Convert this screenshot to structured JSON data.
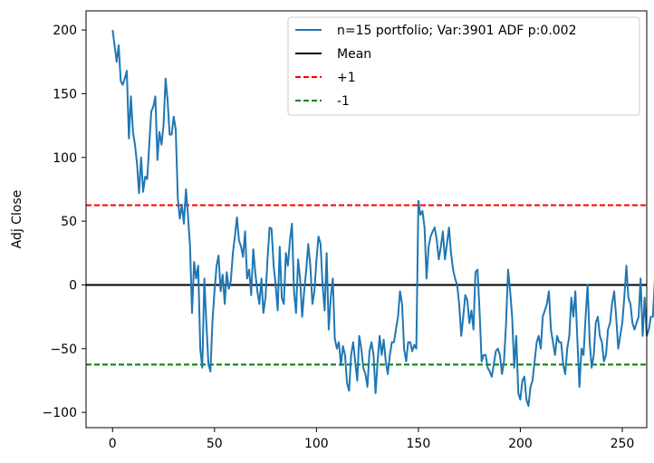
{
  "chart_data": {
    "type": "line",
    "title": "",
    "xlabel": "",
    "ylabel": "Adj Close",
    "xlim": [
      -13,
      262
    ],
    "ylim": [
      -112,
      215
    ],
    "xticks": [
      0,
      50,
      100,
      150,
      200,
      250
    ],
    "yticks": [
      -100,
      -50,
      0,
      50,
      100,
      150,
      200
    ],
    "grid": false,
    "legend_position": "top-right",
    "series": [
      {
        "name": "n=15 portfolio; Var:3901 ADF p:0.002",
        "color": "#1f77b4",
        "style": "solid",
        "x_start": 0,
        "x_step": 1,
        "values": [
          200,
          188,
          175,
          188,
          160,
          157,
          162,
          168,
          115,
          148,
          120,
          110,
          95,
          72,
          100,
          73,
          85,
          83,
          110,
          136,
          140,
          148,
          98,
          120,
          110,
          125,
          162,
          145,
          118,
          118,
          132,
          122,
          68,
          52,
          63,
          48,
          75,
          55,
          30,
          -22,
          18,
          5,
          15,
          -50,
          -65,
          5,
          -30,
          -62,
          -68,
          -28,
          -5,
          15,
          23,
          -5,
          8,
          -15,
          10,
          -3,
          3,
          25,
          38,
          53,
          35,
          30,
          22,
          42,
          5,
          12,
          -8,
          28,
          10,
          -5,
          -15,
          5,
          -22,
          -10,
          20,
          45,
          44,
          15,
          0,
          -20,
          30,
          -10,
          -15,
          25,
          15,
          35,
          48,
          -5,
          -22,
          20,
          5,
          -25,
          -5,
          12,
          32,
          15,
          -15,
          -5,
          20,
          38,
          32,
          0,
          -20,
          25,
          -35,
          -10,
          5,
          -42,
          -50,
          -45,
          -63,
          -48,
          -55,
          -77,
          -83,
          -55,
          -45,
          -60,
          -75,
          -40,
          -50,
          -65,
          -70,
          -80,
          -52,
          -45,
          -55,
          -85,
          -60,
          -40,
          -55,
          -43,
          -60,
          -70,
          -55,
          -45,
          -45,
          -35,
          -25,
          -5,
          -15,
          -50,
          -60,
          -45,
          -45,
          -52,
          -47,
          -50,
          66,
          55,
          58,
          45,
          5,
          30,
          38,
          42,
          45,
          35,
          20,
          30,
          42,
          20,
          32,
          45,
          25,
          12,
          5,
          0,
          -15,
          -40,
          -25,
          -8,
          -12,
          -30,
          -20,
          -35,
          10,
          12,
          -20,
          -60,
          -55,
          -55,
          -65,
          -68,
          -72,
          -62,
          -52,
          -50,
          -55,
          -70,
          -60,
          -30,
          12,
          -5,
          -25,
          -65,
          -40,
          -85,
          -90,
          -75,
          -72,
          -90,
          -95,
          -80,
          -75,
          -60,
          -45,
          -40,
          -50,
          -25,
          -20,
          -15,
          -5,
          -35,
          -45,
          -55,
          -40,
          -45,
          -45,
          -62,
          -70,
          -50,
          -40,
          -10,
          -25,
          -5,
          -45,
          -80,
          -50,
          -55,
          -25,
          0,
          -45,
          -65,
          -55,
          -30,
          -25,
          -40,
          -45,
          -60,
          -55,
          -35,
          -30,
          -15,
          -5,
          -25,
          -50,
          -40,
          -30,
          -10,
          15,
          -10,
          -15,
          -30,
          -35,
          -30,
          -25,
          5,
          -40,
          -10,
          -40,
          -35,
          -25,
          -25,
          5,
          2
        ]
      },
      {
        "name": "Mean",
        "color": "#000000",
        "style": "solid",
        "y": 0
      },
      {
        "name": "+1",
        "color": "#ff0000",
        "style": "dashed",
        "y": 62.5
      },
      {
        "name": "-1",
        "color": "#008000",
        "style": "dashed",
        "y": -62.5
      }
    ]
  }
}
